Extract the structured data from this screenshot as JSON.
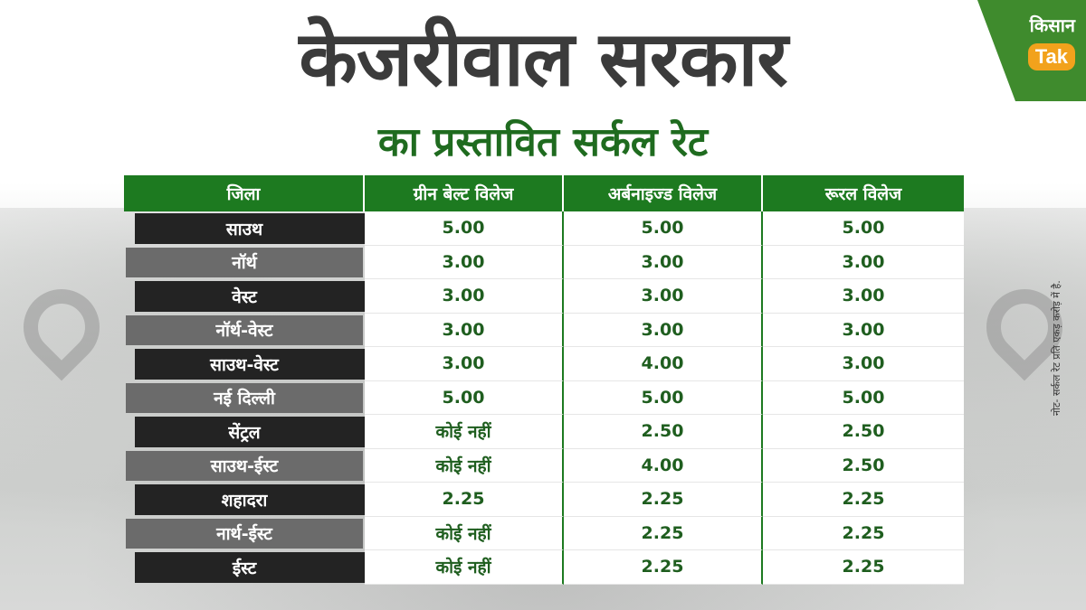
{
  "title": "केजरीवाल सरकार",
  "subtitle": "का प्रस्तावित सर्कल रेट",
  "logo": {
    "line1": "किसान",
    "line2": "Tak"
  },
  "note": "नोट- सर्कल रेट प्रति एकड़ करोड़ में है.",
  "table": {
    "headers": [
      "जिला",
      "ग्रीन बेल्ट विलेज",
      "अर्बनाइज्ड विलेज",
      "रूरल विलेज"
    ],
    "rows": [
      [
        "साउथ",
        "5.00",
        "5.00",
        "5.00"
      ],
      [
        "नॉर्थ",
        "3.00",
        "3.00",
        "3.00"
      ],
      [
        "वेस्ट",
        "3.00",
        "3.00",
        "3.00"
      ],
      [
        "नॉर्थ-वेस्ट",
        "3.00",
        "3.00",
        "3.00"
      ],
      [
        "साउथ-वेस्ट",
        "3.00",
        "4.00",
        "3.00"
      ],
      [
        "नई दिल्ली",
        "5.00",
        "5.00",
        "5.00"
      ],
      [
        "सेंट्रल",
        "कोई नहीं",
        "2.50",
        "2.50"
      ],
      [
        "साउथ-ईस्ट",
        "कोई नहीं",
        "4.00",
        "2.50"
      ],
      [
        "शहादरा",
        "2.25",
        "2.25",
        "2.25"
      ],
      [
        "नार्थ-ईस्ट",
        "कोई नहीं",
        "2.25",
        "2.25"
      ],
      [
        "ईस्ट",
        "कोई नहीं",
        "2.25",
        "2.25"
      ]
    ]
  },
  "colors": {
    "header_green": "#1d7a20",
    "title_gray": "#3b3b3b",
    "subtitle_green": "#1f6b1f"
  },
  "icons": [
    "location-pin-icon",
    "location-pin-icon"
  ]
}
